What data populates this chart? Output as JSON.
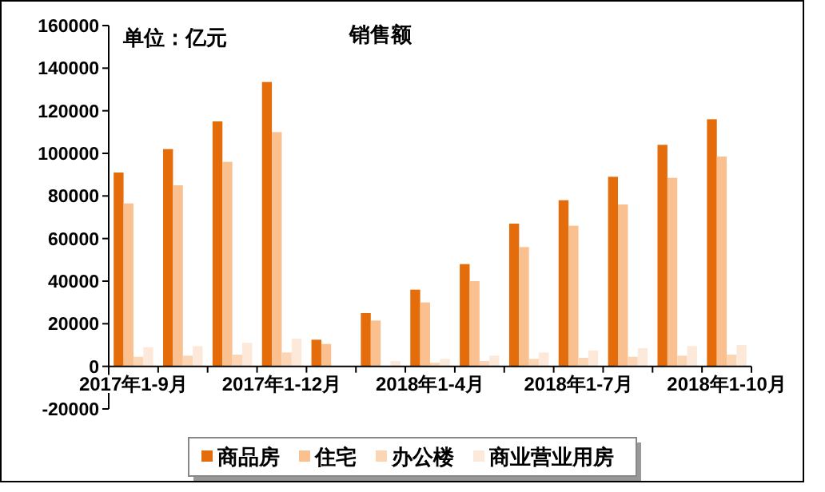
{
  "chart_data": {
    "type": "bar",
    "title": "销售额",
    "annotations": [
      "单位：亿元"
    ],
    "categories": [
      "2017年1-9月",
      null,
      null,
      "2017年1-12月",
      null,
      null,
      "2018年1-4月",
      null,
      null,
      "2018年1-7月",
      null,
      null,
      "2018年1-10月"
    ],
    "series": [
      {
        "name": "商品房",
        "color": "#e46c0a",
        "values": [
          91000,
          102000,
          115000,
          133500,
          12500,
          25000,
          36000,
          48000,
          67000,
          78000,
          89000,
          104000,
          116000
        ]
      },
      {
        "name": "住宅",
        "color": "#fac090",
        "values": [
          76500,
          85000,
          96000,
          110000,
          10500,
          21500,
          30000,
          40000,
          56000,
          66000,
          76000,
          88500,
          98500
        ]
      },
      {
        "name": "办公楼",
        "color": "#fcd5b5",
        "values": [
          4500,
          5000,
          5500,
          6500,
          null,
          null,
          1700,
          2500,
          3500,
          4000,
          4500,
          5000,
          5500
        ]
      },
      {
        "name": "商业营业用房",
        "color": "#fde9d9",
        "values": [
          9000,
          9500,
          11000,
          13000,
          null,
          2500,
          3500,
          5000,
          6500,
          7500,
          8500,
          9500,
          10000
        ]
      }
    ],
    "ylim": [
      -20000,
      160000
    ],
    "yticks": [
      -20000,
      0,
      20000,
      40000,
      60000,
      80000,
      100000,
      120000,
      140000,
      160000
    ],
    "grid": false,
    "legend": "bottom"
  }
}
